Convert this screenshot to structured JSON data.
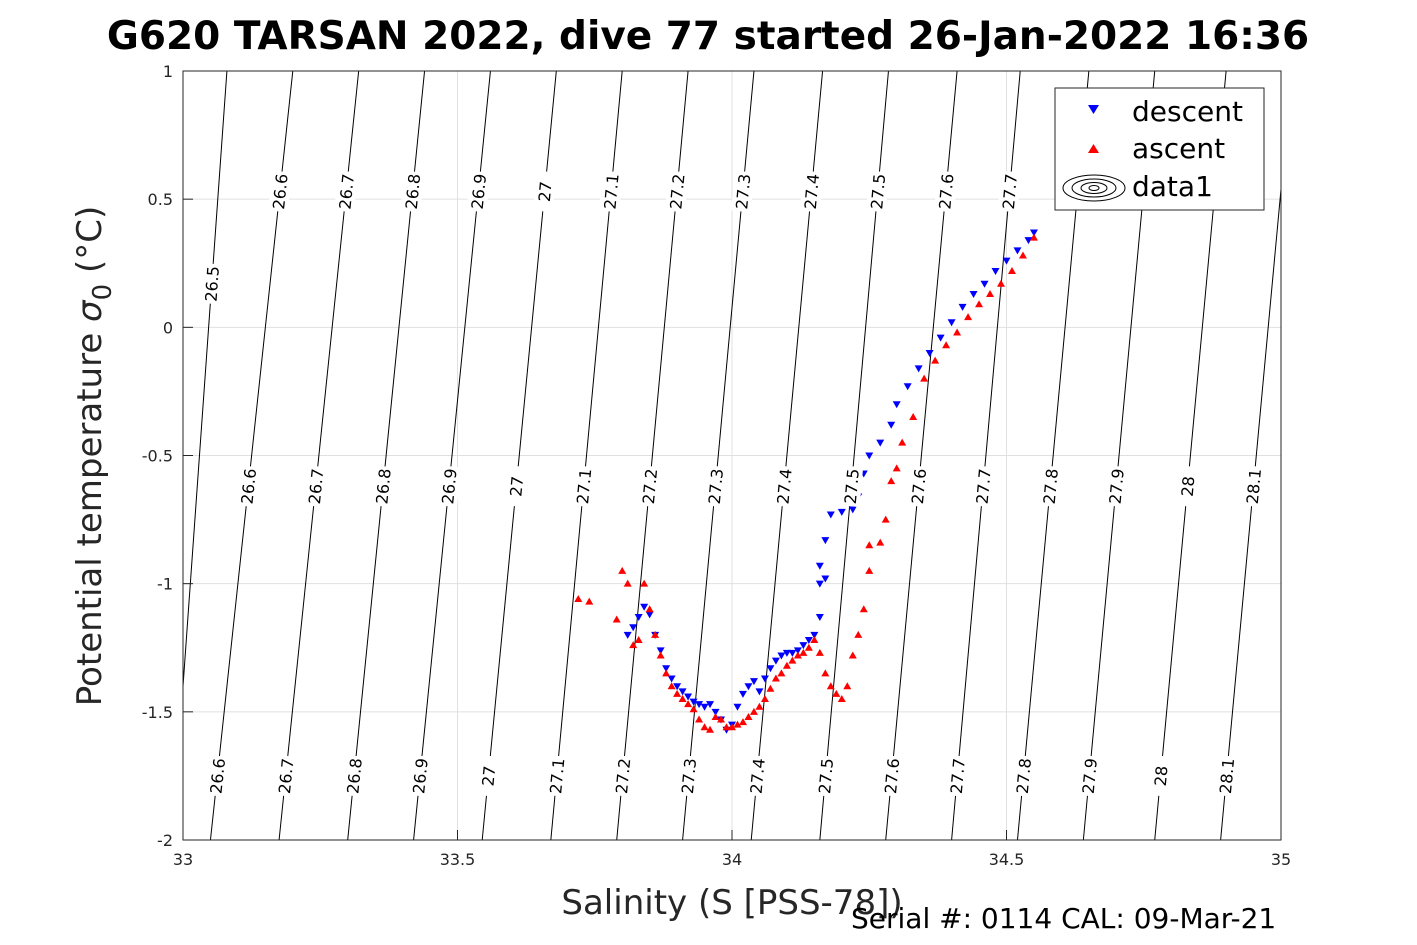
{
  "title": "G620 TARSAN 2022, dive 77 started 26-Jan-2022 16:36",
  "footer": "Serial #: 0114  CAL: 09-Mar-21",
  "chart_data": {
    "type": "scatter",
    "title": "G620 TARSAN 2022, dive 77 started 26-Jan-2022 16:36",
    "xlabel": "Salinity (S [PSS-78])",
    "ylabel": "Potential temperature σ0 (°C)",
    "xlim": [
      33,
      35
    ],
    "ylim": [
      -2,
      1
    ],
    "x_ticks": [
      "33",
      "33.5",
      "34",
      "34.5",
      "35"
    ],
    "y_ticks": [
      "1",
      "0.5",
      "0",
      "-0.5",
      "-1",
      "-1.5",
      "-2"
    ],
    "x_tick_values": [
      33,
      33.5,
      34,
      34.5,
      35
    ],
    "y_tick_values": [
      1,
      0.5,
      0,
      -0.5,
      -1,
      -1.5,
      -2
    ],
    "grid": true,
    "legend_position": "top-right",
    "legend": [
      "descent",
      "ascent",
      "data1"
    ],
    "density_contours": {
      "name": "data1",
      "levels": [
        {
          "value": "26.5",
          "x_at_top": 33.08,
          "x_at_bottom": 32.98,
          "labels": [
            "26.5"
          ]
        },
        {
          "value": "26.6",
          "x_at_top": 33.2,
          "x_at_bottom": 33.05,
          "labels": [
            "26.6",
            "26.6",
            "26.6"
          ]
        },
        {
          "value": "26.7",
          "x_at_top": 33.32,
          "x_at_bottom": 33.175,
          "labels": [
            "26.7",
            "26.7",
            "26.7"
          ]
        },
        {
          "value": "26.8",
          "x_at_top": 33.44,
          "x_at_bottom": 33.3,
          "labels": [
            "26.8",
            "26.8",
            "26.8"
          ]
        },
        {
          "value": "26.9",
          "x_at_top": 33.56,
          "x_at_bottom": 33.42,
          "labels": [
            "26.9",
            "26.9",
            "26.9"
          ]
        },
        {
          "value": "27",
          "x_at_top": 33.68,
          "x_at_bottom": 33.545,
          "labels": [
            "27",
            "27",
            "27"
          ]
        },
        {
          "value": "27.1",
          "x_at_top": 33.8,
          "x_at_bottom": 33.67,
          "labels": [
            "27.1",
            "27.1",
            "27.1"
          ]
        },
        {
          "value": "27.2",
          "x_at_top": 33.92,
          "x_at_bottom": 33.79,
          "labels": [
            "27.2",
            "27.2",
            "27.2"
          ]
        },
        {
          "value": "27.3",
          "x_at_top": 34.04,
          "x_at_bottom": 33.91,
          "labels": [
            "27.3",
            "27.3",
            "27.3"
          ]
        },
        {
          "value": "27.4",
          "x_at_top": 34.165,
          "x_at_bottom": 34.035,
          "labels": [
            "27.4",
            "27.4",
            "27.4"
          ]
        },
        {
          "value": "27.5",
          "x_at_top": 34.285,
          "x_at_bottom": 34.16,
          "labels": [
            "27.5",
            "27.5",
            "27.5"
          ]
        },
        {
          "value": "27.6",
          "x_at_top": 34.41,
          "x_at_bottom": 34.28,
          "labels": [
            "27.6",
            "27.6",
            "27.6"
          ]
        },
        {
          "value": "27.7",
          "x_at_top": 34.525,
          "x_at_bottom": 34.4,
          "labels": [
            "27.7",
            "27.7",
            "27.7"
          ]
        },
        {
          "value": "27.8",
          "x_at_top": 34.65,
          "x_at_bottom": 34.52,
          "labels": [
            "27.8",
            "27.8"
          ]
        },
        {
          "value": "27.9",
          "x_at_top": 34.77,
          "x_at_bottom": 34.64,
          "labels": [
            "27.9",
            "27.9"
          ]
        },
        {
          "value": "28",
          "x_at_top": 34.9,
          "x_at_bottom": 34.77,
          "labels": [
            "28",
            "28"
          ]
        },
        {
          "value": "28.1",
          "x_at_top": 35.02,
          "x_at_bottom": 34.89,
          "labels": [
            "28.1",
            "28.1"
          ]
        }
      ]
    },
    "series": [
      {
        "name": "descent",
        "color": "#0000ff",
        "marker": "triangle-down",
        "points": [
          [
            33.81,
            -1.2
          ],
          [
            33.82,
            -1.17
          ],
          [
            33.83,
            -1.13
          ],
          [
            33.84,
            -1.09
          ],
          [
            33.85,
            -1.12
          ],
          [
            33.86,
            -1.2
          ],
          [
            33.87,
            -1.26
          ],
          [
            33.88,
            -1.33
          ],
          [
            33.89,
            -1.37
          ],
          [
            33.9,
            -1.4
          ],
          [
            33.91,
            -1.42
          ],
          [
            33.92,
            -1.44
          ],
          [
            33.93,
            -1.46
          ],
          [
            33.94,
            -1.47
          ],
          [
            33.95,
            -1.48
          ],
          [
            33.96,
            -1.47
          ],
          [
            33.97,
            -1.5
          ],
          [
            33.98,
            -1.53
          ],
          [
            33.99,
            -1.57
          ],
          [
            34.0,
            -1.55
          ],
          [
            34.01,
            -1.48
          ],
          [
            34.02,
            -1.43
          ],
          [
            34.03,
            -1.4
          ],
          [
            34.04,
            -1.38
          ],
          [
            34.05,
            -1.42
          ],
          [
            34.06,
            -1.37
          ],
          [
            34.07,
            -1.33
          ],
          [
            34.08,
            -1.3
          ],
          [
            34.09,
            -1.28
          ],
          [
            34.1,
            -1.27
          ],
          [
            34.11,
            -1.27
          ],
          [
            34.12,
            -1.26
          ],
          [
            34.13,
            -1.24
          ],
          [
            34.14,
            -1.22
          ],
          [
            34.15,
            -1.2
          ],
          [
            34.16,
            -1.13
          ],
          [
            34.16,
            -1.0
          ],
          [
            34.17,
            -0.98
          ],
          [
            34.16,
            -0.93
          ],
          [
            34.17,
            -0.83
          ],
          [
            34.18,
            -0.73
          ],
          [
            34.2,
            -0.72
          ],
          [
            34.22,
            -0.71
          ],
          [
            34.23,
            -0.66
          ],
          [
            34.24,
            -0.57
          ],
          [
            34.25,
            -0.5
          ],
          [
            34.27,
            -0.45
          ],
          [
            34.29,
            -0.38
          ],
          [
            34.3,
            -0.3
          ],
          [
            34.32,
            -0.23
          ],
          [
            34.34,
            -0.16
          ],
          [
            34.36,
            -0.1
          ],
          [
            34.38,
            -0.04
          ],
          [
            34.4,
            0.02
          ],
          [
            34.42,
            0.08
          ],
          [
            34.44,
            0.13
          ],
          [
            34.46,
            0.17
          ],
          [
            34.48,
            0.22
          ],
          [
            34.5,
            0.26
          ],
          [
            34.52,
            0.3
          ],
          [
            34.54,
            0.34
          ],
          [
            34.55,
            0.37
          ]
        ]
      },
      {
        "name": "ascent",
        "color": "#ff0000",
        "marker": "triangle-up",
        "points": [
          [
            33.72,
            -1.06
          ],
          [
            33.74,
            -1.07
          ],
          [
            33.79,
            -1.14
          ],
          [
            33.8,
            -0.95
          ],
          [
            33.81,
            -1.0
          ],
          [
            33.82,
            -1.24
          ],
          [
            33.83,
            -1.22
          ],
          [
            33.84,
            -1.0
          ],
          [
            33.85,
            -1.1
          ],
          [
            33.86,
            -1.2
          ],
          [
            33.87,
            -1.28
          ],
          [
            33.88,
            -1.35
          ],
          [
            33.89,
            -1.4
          ],
          [
            33.9,
            -1.43
          ],
          [
            33.91,
            -1.45
          ],
          [
            33.92,
            -1.47
          ],
          [
            33.93,
            -1.49
          ],
          [
            33.94,
            -1.53
          ],
          [
            33.95,
            -1.56
          ],
          [
            33.96,
            -1.57
          ],
          [
            33.97,
            -1.52
          ],
          [
            33.98,
            -1.53
          ],
          [
            33.99,
            -1.56
          ],
          [
            34.0,
            -1.56
          ],
          [
            34.01,
            -1.55
          ],
          [
            34.02,
            -1.54
          ],
          [
            34.03,
            -1.52
          ],
          [
            34.04,
            -1.5
          ],
          [
            34.05,
            -1.48
          ],
          [
            34.06,
            -1.45
          ],
          [
            34.07,
            -1.41
          ],
          [
            34.08,
            -1.37
          ],
          [
            34.09,
            -1.35
          ],
          [
            34.1,
            -1.32
          ],
          [
            34.11,
            -1.3
          ],
          [
            34.12,
            -1.28
          ],
          [
            34.13,
            -1.27
          ],
          [
            34.14,
            -1.25
          ],
          [
            34.15,
            -1.22
          ],
          [
            34.16,
            -1.27
          ],
          [
            34.17,
            -1.35
          ],
          [
            34.18,
            -1.4
          ],
          [
            34.19,
            -1.43
          ],
          [
            34.2,
            -1.45
          ],
          [
            34.21,
            -1.4
          ],
          [
            34.22,
            -1.28
          ],
          [
            34.23,
            -1.2
          ],
          [
            34.24,
            -1.1
          ],
          [
            34.25,
            -0.95
          ],
          [
            34.25,
            -0.85
          ],
          [
            34.27,
            -0.84
          ],
          [
            34.28,
            -0.75
          ],
          [
            34.29,
            -0.6
          ],
          [
            34.3,
            -0.55
          ],
          [
            34.31,
            -0.45
          ],
          [
            34.33,
            -0.35
          ],
          [
            34.35,
            -0.2
          ],
          [
            34.37,
            -0.13
          ],
          [
            34.39,
            -0.07
          ],
          [
            34.41,
            -0.02
          ],
          [
            34.43,
            0.04
          ],
          [
            34.45,
            0.09
          ],
          [
            34.47,
            0.13
          ],
          [
            34.49,
            0.17
          ],
          [
            34.51,
            0.22
          ],
          [
            34.53,
            0.28
          ],
          [
            34.55,
            0.35
          ]
        ]
      }
    ]
  }
}
